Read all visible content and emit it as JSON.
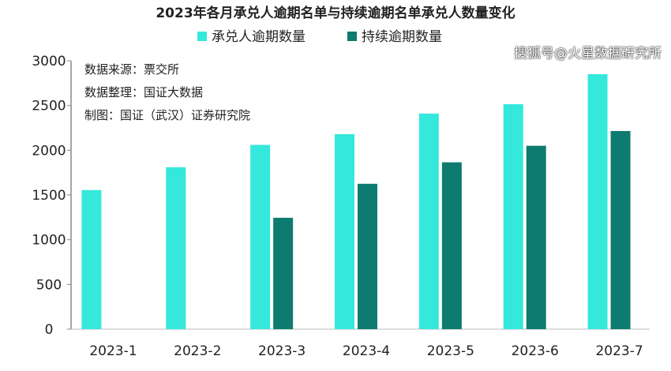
{
  "chart_data": {
    "type": "bar",
    "title": "2023年各月承兑人逾期名单与持续逾期名单承兑人数量变化",
    "categories": [
      "2023-1",
      "2023-2",
      "2023-3",
      "2023-4",
      "2023-5",
      "2023-6",
      "2023-7"
    ],
    "series": [
      {
        "name": "承兑人逾期数量",
        "color": "#35e8dc",
        "values": [
          1555,
          1810,
          2060,
          2180,
          2410,
          2515,
          2850
        ]
      },
      {
        "name": "持续逾期数量",
        "color": "#0d7b70",
        "values": [
          null,
          null,
          1245,
          1625,
          1865,
          2050,
          2215
        ]
      }
    ],
    "ylim": [
      0,
      3000
    ],
    "yticks": [
      0,
      500,
      1000,
      1500,
      2000,
      2500,
      3000
    ],
    "grid": false,
    "legend_position": "top",
    "annotations": [
      "数据来源：票交所",
      "数据整理：国证大数据",
      "制图：国证（武汉）证券研究院"
    ]
  },
  "watermark": "搜狐号@火星数据研究所"
}
